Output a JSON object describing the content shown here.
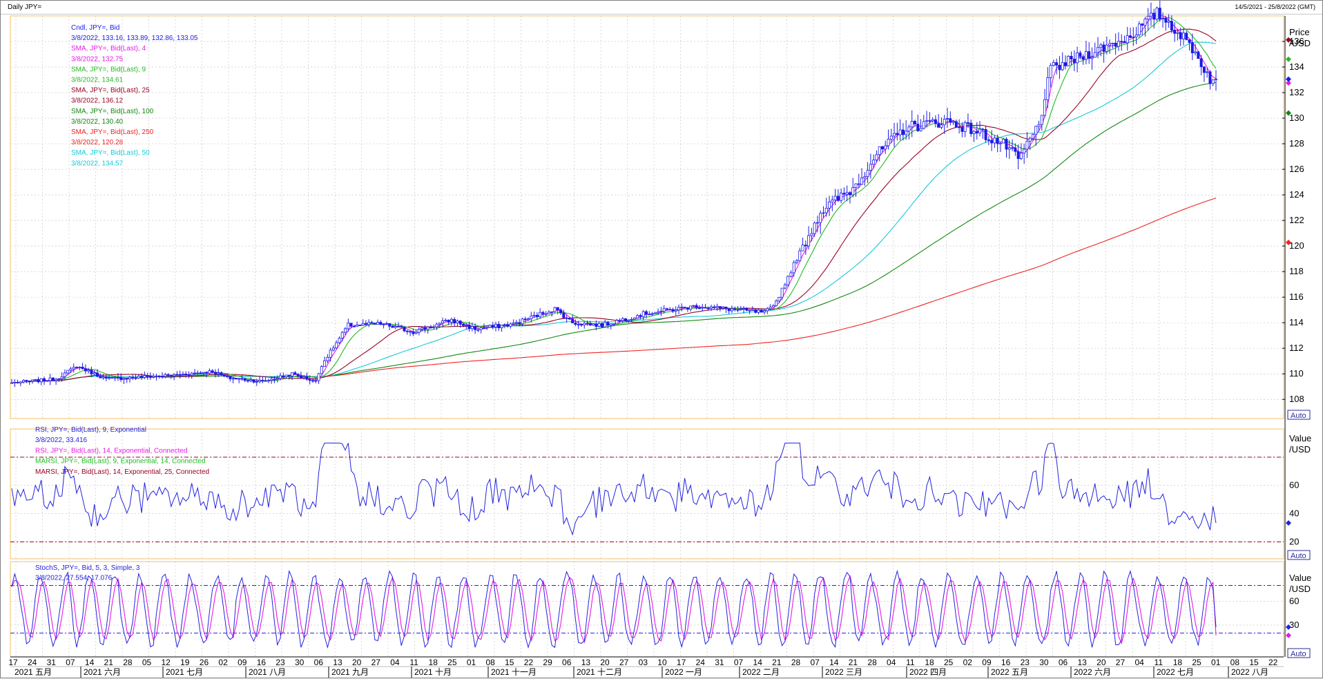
{
  "window": {
    "title": "Daily JPY=",
    "date_range": "14/5/2021 - 25/8/2022 (GMT)"
  },
  "colors": {
    "candle": "#1a1ae6",
    "sma4": "#e61ae6",
    "sma9": "#22bb22",
    "sma25": "#990022",
    "sma100": "#118811",
    "sma250": "#ee2222",
    "sma50": "#18c8d8",
    "rsi": "#2222dd",
    "ref_line": "#990022",
    "stoch_k": "#2222dd",
    "stoch_d": "#e61ae6",
    "stoch_ref": "#2222dd"
  },
  "price_panel": {
    "legend": [
      {
        "text": "Cndl, JPY=, Bid",
        "color": "#1a1ae6"
      },
      {
        "text": "3/8/2022, 133.16, 133.89, 132.86, 133.05",
        "color": "#1a1ae6"
      },
      {
        "text": "SMA, JPY=, Bid(Last),  4",
        "color": "#e61ae6"
      },
      {
        "text": "3/8/2022, 132.75",
        "color": "#e61ae6"
      },
      {
        "text": "SMA, JPY=, Bid(Last),  9",
        "color": "#22bb22"
      },
      {
        "text": "3/8/2022, 134.61",
        "color": "#22bb22"
      },
      {
        "text": "SMA, JPY=, Bid(Last),  25",
        "color": "#990022"
      },
      {
        "text": "3/8/2022, 136.12",
        "color": "#990022"
      },
      {
        "text": "SMA, JPY=, Bid(Last),  100",
        "color": "#118811"
      },
      {
        "text": "3/8/2022, 130.40",
        "color": "#118811"
      },
      {
        "text": "SMA, JPY=, Bid(Last),  250",
        "color": "#ee2222"
      },
      {
        "text": "3/8/2022, 120.28",
        "color": "#ee2222"
      },
      {
        "text": "SMA, JPY=, Bid(Last),  50",
        "color": "#18c8d8"
      },
      {
        "text": "3/8/2022, 134.57",
        "color": "#18c8d8"
      }
    ],
    "axis_title": [
      "Price",
      "/USD"
    ],
    "ticks": [
      "108",
      "110",
      "112",
      "114",
      "116",
      "118",
      "120",
      "122",
      "124",
      "126",
      "128",
      "130",
      "132",
      "134",
      "136"
    ],
    "auto_label": "Auto"
  },
  "rsi_panel": {
    "legend": [
      {
        "text": "RSI, JPY=, Bid(Last),  9, Exponential",
        "color": "#2222dd"
      },
      {
        "text": "3/8/2022, 33.416",
        "color": "#2222dd"
      },
      {
        "text": "RSI, JPY=, Bid(Last),  14, Exponential, Connected",
        "color": "#e61ae6"
      },
      {
        "text": "MARSI, JPY=, Bid(Last),  9, Exponential, 14, Connected",
        "color": "#22bb22"
      },
      {
        "text": "MARSI, JPY=, Bid(Last),  14, Exponential, 25, Connected",
        "color": "#990022"
      }
    ],
    "axis_title": [
      "Value",
      "/USD"
    ],
    "ticks": [
      "20",
      "40",
      "60"
    ],
    "auto_label": "Auto"
  },
  "stoch_panel": {
    "legend": [
      {
        "text": "StochS, JPY=, Bid,  5, 3, Simple, 3",
        "color": "#2222dd"
      },
      {
        "text": "3/8/2022, 27.554, 17.076",
        "color": "#2222dd"
      }
    ],
    "axis_title": [
      "Value",
      "/USD"
    ],
    "ticks": [
      "30",
      "60"
    ],
    "auto_label": "Auto"
  },
  "x_axis": {
    "days": [
      "17",
      "24",
      "31",
      "07",
      "14",
      "21",
      "28",
      "05",
      "12",
      "19",
      "26",
      "02",
      "09",
      "16",
      "23",
      "30",
      "06",
      "13",
      "20",
      "27",
      "04",
      "11",
      "18",
      "25",
      "01",
      "08",
      "15",
      "22",
      "29",
      "06",
      "13",
      "20",
      "27",
      "03",
      "10",
      "17",
      "24",
      "31",
      "07",
      "14",
      "21",
      "28",
      "07",
      "14",
      "21",
      "28",
      "04",
      "11",
      "18",
      "25",
      "02",
      "09",
      "16",
      "23",
      "30",
      "06",
      "13",
      "20",
      "27",
      "04",
      "11",
      "18",
      "25",
      "01",
      "08",
      "15",
      "22"
    ],
    "months": [
      "2021 五月",
      "2021 六月",
      "2021 七月",
      "2021 八月",
      "2021 九月",
      "2021 十月",
      "2021 十一月",
      "2021 十二月",
      "2022 一月",
      "2022 二月",
      "2022 三月",
      "2022 四月",
      "2022 五月",
      "2022 六月",
      "2022 七月",
      "2022 八月"
    ]
  },
  "chart_data": {
    "type": "line",
    "instrument": "JPY=",
    "x_range": [
      "14/5/2021",
      "25/8/2022"
    ],
    "price_ylim": [
      106.5,
      138
    ],
    "price_anchors": [
      [
        0,
        109.3
      ],
      [
        15,
        109.6
      ],
      [
        22,
        110.6
      ],
      [
        32,
        109.6
      ],
      [
        55,
        109.9
      ],
      [
        68,
        110.2
      ],
      [
        73,
        109.7
      ],
      [
        85,
        109.4
      ],
      [
        95,
        110.0
      ],
      [
        103,
        109.4
      ],
      [
        105,
        110.7
      ],
      [
        114,
        113.8
      ],
      [
        125,
        113.9
      ],
      [
        136,
        113.3
      ],
      [
        149,
        114.2
      ],
      [
        157,
        113.5
      ],
      [
        170,
        113.9
      ],
      [
        184,
        115.1
      ],
      [
        190,
        114.0
      ],
      [
        200,
        113.8
      ],
      [
        214,
        114.7
      ],
      [
        232,
        115.3
      ],
      [
        255,
        114.8
      ],
      [
        258,
        115.2
      ],
      [
        267,
        119.5
      ],
      [
        274,
        122.7
      ],
      [
        285,
        124.5
      ],
      [
        292,
        126.9
      ],
      [
        303,
        129.3
      ],
      [
        317,
        129.8
      ],
      [
        328,
        128.9
      ],
      [
        337,
        127.8
      ],
      [
        341,
        126.7
      ],
      [
        348,
        129.5
      ],
      [
        352,
        133.8
      ],
      [
        361,
        134.7
      ],
      [
        378,
        136.3
      ],
      [
        388,
        138.2
      ],
      [
        392,
        137.5
      ],
      [
        400,
        135.5
      ],
      [
        406,
        133.1
      ],
      [
        407,
        132.9
      ],
      [
        408,
        133.05
      ]
    ],
    "rsi_ylim": [
      8,
      100
    ],
    "rsi_ref_lines": [
      20,
      80
    ],
    "stoch_ylim": [
      -10,
      110
    ],
    "stoch_ref_lines": [
      20,
      80
    ],
    "last_values": {
      "sma4": 132.75,
      "sma9": 134.61,
      "sma25": 136.12,
      "sma100": 130.4,
      "sma250": 120.28,
      "sma50": 134.57,
      "rsi9": 33.416,
      "stoch_k": 27.554,
      "stoch_d": 17.076
    }
  }
}
